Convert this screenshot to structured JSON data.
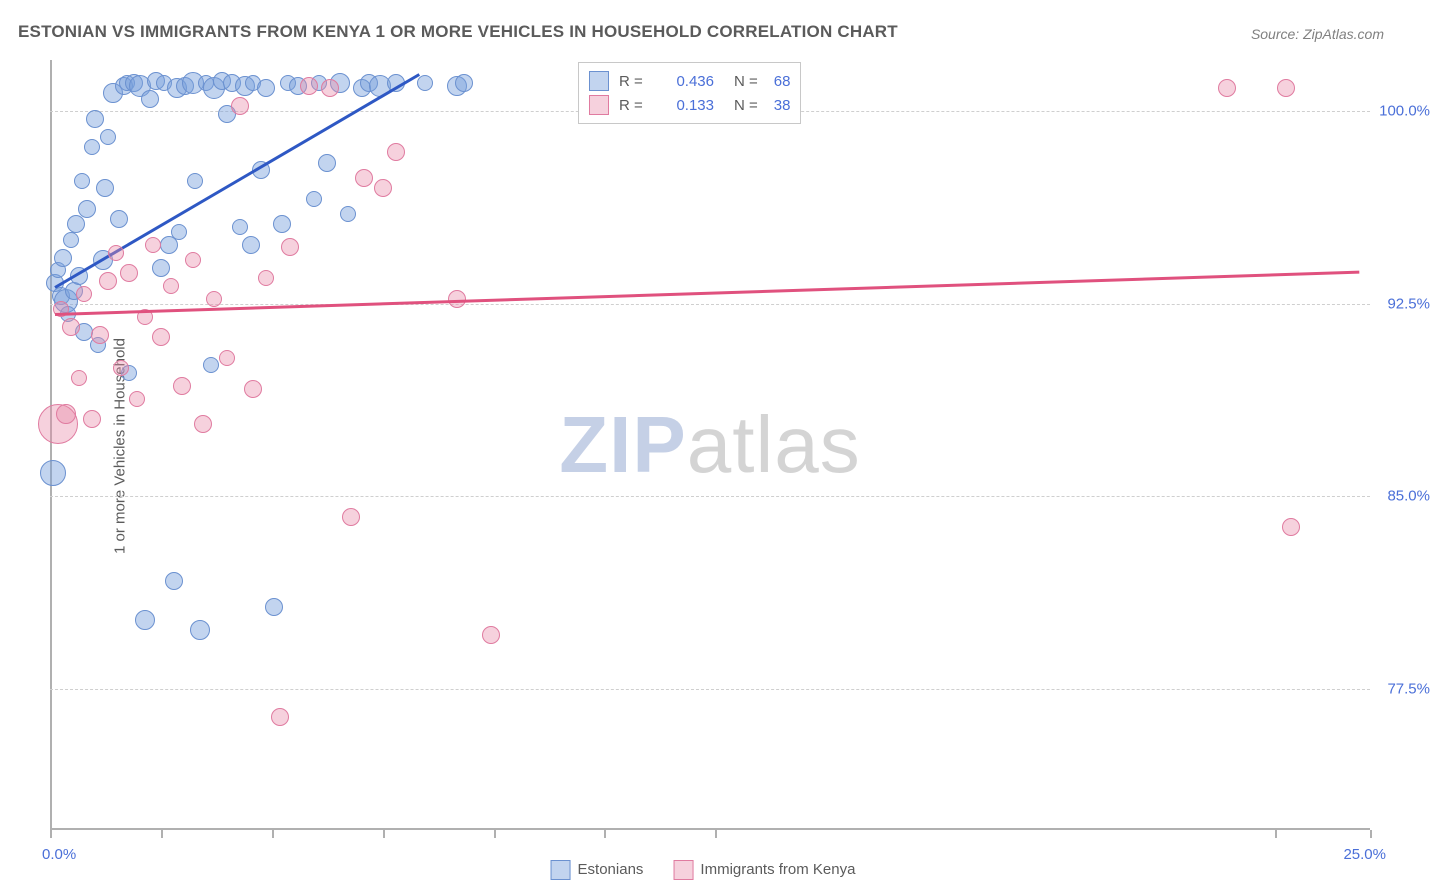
{
  "title": "ESTONIAN VS IMMIGRANTS FROM KENYA 1 OR MORE VEHICLES IN HOUSEHOLD CORRELATION CHART",
  "source": "Source: ZipAtlas.com",
  "ylabel": "1 or more Vehicles in Household",
  "watermark": {
    "bold": "ZIP",
    "rest": "atlas"
  },
  "chart": {
    "type": "scatter",
    "xlim": [
      0,
      25
    ],
    "ylim": [
      72,
      102
    ],
    "x_tick_labels": {
      "min": "0.0%",
      "max": "25.0%"
    },
    "x_ticks_at": [
      0,
      2.1,
      4.2,
      6.3,
      8.4,
      10.5,
      12.6,
      23.2,
      25.0
    ],
    "y_ticks": [
      77.5,
      85.0,
      92.5,
      100.0
    ],
    "y_tick_labels": [
      "77.5%",
      "85.0%",
      "92.5%",
      "100.0%"
    ],
    "grid_color": "#d4d4d4",
    "background_color": "#ffffff",
    "axis_color": "#b0b0b0",
    "tick_label_color": "#4a6fd8",
    "title_color": "#5b5b5b",
    "series": [
      {
        "id": "a",
        "label": "Estonians",
        "color_fill": "rgba(120,160,220,0.45)",
        "color_stroke": "#6b91d0",
        "R": "0.436",
        "N": "68",
        "trend": {
          "x0": 0.1,
          "y0": 93.2,
          "x1": 7.0,
          "y1": 101.5,
          "color": "#2e58c4",
          "width": 3
        },
        "points": [
          {
            "x": 0.1,
            "y": 93.3,
            "r": 9
          },
          {
            "x": 0.15,
            "y": 93.8,
            "r": 8
          },
          {
            "x": 0.2,
            "y": 92.8,
            "r": 9
          },
          {
            "x": 0.25,
            "y": 94.3,
            "r": 9
          },
          {
            "x": 0.3,
            "y": 92.6,
            "r": 12
          },
          {
            "x": 0.35,
            "y": 92.1,
            "r": 8
          },
          {
            "x": 0.4,
            "y": 95.0,
            "r": 8
          },
          {
            "x": 0.45,
            "y": 93.0,
            "r": 9
          },
          {
            "x": 0.5,
            "y": 95.6,
            "r": 9
          },
          {
            "x": 0.55,
            "y": 93.6,
            "r": 9
          },
          {
            "x": 0.6,
            "y": 97.3,
            "r": 8
          },
          {
            "x": 0.65,
            "y": 91.4,
            "r": 9
          },
          {
            "x": 0.7,
            "y": 96.2,
            "r": 9
          },
          {
            "x": 0.8,
            "y": 98.6,
            "r": 8
          },
          {
            "x": 0.85,
            "y": 99.7,
            "r": 9
          },
          {
            "x": 0.9,
            "y": 90.9,
            "r": 8
          },
          {
            "x": 1.0,
            "y": 94.2,
            "r": 10
          },
          {
            "x": 1.05,
            "y": 97.0,
            "r": 9
          },
          {
            "x": 1.1,
            "y": 99.0,
            "r": 8
          },
          {
            "x": 1.2,
            "y": 100.7,
            "r": 10
          },
          {
            "x": 1.3,
            "y": 95.8,
            "r": 9
          },
          {
            "x": 1.4,
            "y": 101.0,
            "r": 9
          },
          {
            "x": 1.45,
            "y": 101.1,
            "r": 8
          },
          {
            "x": 1.5,
            "y": 89.8,
            "r": 8
          },
          {
            "x": 1.6,
            "y": 101.1,
            "r": 9
          },
          {
            "x": 1.7,
            "y": 101.0,
            "r": 11
          },
          {
            "x": 1.8,
            "y": 80.2,
            "r": 10
          },
          {
            "x": 1.9,
            "y": 100.5,
            "r": 9
          },
          {
            "x": 2.0,
            "y": 101.2,
            "r": 9
          },
          {
            "x": 2.1,
            "y": 93.9,
            "r": 9
          },
          {
            "x": 2.15,
            "y": 101.1,
            "r": 8
          },
          {
            "x": 2.25,
            "y": 94.8,
            "r": 9
          },
          {
            "x": 2.35,
            "y": 81.7,
            "r": 9
          },
          {
            "x": 2.4,
            "y": 100.9,
            "r": 10
          },
          {
            "x": 2.45,
            "y": 95.3,
            "r": 8
          },
          {
            "x": 2.55,
            "y": 101.0,
            "r": 9
          },
          {
            "x": 2.7,
            "y": 101.1,
            "r": 11
          },
          {
            "x": 2.75,
            "y": 97.3,
            "r": 8
          },
          {
            "x": 2.85,
            "y": 79.8,
            "r": 10
          },
          {
            "x": 2.95,
            "y": 101.1,
            "r": 8
          },
          {
            "x": 3.05,
            "y": 90.1,
            "r": 8
          },
          {
            "x": 3.1,
            "y": 100.9,
            "r": 11
          },
          {
            "x": 3.25,
            "y": 101.2,
            "r": 9
          },
          {
            "x": 3.35,
            "y": 99.9,
            "r": 9
          },
          {
            "x": 3.45,
            "y": 101.1,
            "r": 9
          },
          {
            "x": 3.6,
            "y": 95.5,
            "r": 8
          },
          {
            "x": 3.7,
            "y": 101.0,
            "r": 10
          },
          {
            "x": 3.8,
            "y": 94.8,
            "r": 9
          },
          {
            "x": 3.85,
            "y": 101.1,
            "r": 8
          },
          {
            "x": 4.0,
            "y": 97.7,
            "r": 9
          },
          {
            "x": 4.1,
            "y": 100.9,
            "r": 9
          },
          {
            "x": 4.25,
            "y": 80.7,
            "r": 9
          },
          {
            "x": 4.4,
            "y": 95.6,
            "r": 9
          },
          {
            "x": 4.5,
            "y": 101.1,
            "r": 8
          },
          {
            "x": 4.7,
            "y": 101.0,
            "r": 9
          },
          {
            "x": 5.0,
            "y": 96.6,
            "r": 8
          },
          {
            "x": 5.1,
            "y": 101.1,
            "r": 8
          },
          {
            "x": 5.25,
            "y": 98.0,
            "r": 9
          },
          {
            "x": 5.5,
            "y": 101.1,
            "r": 10
          },
          {
            "x": 5.65,
            "y": 96.0,
            "r": 8
          },
          {
            "x": 5.9,
            "y": 100.9,
            "r": 9
          },
          {
            "x": 6.05,
            "y": 101.1,
            "r": 9
          },
          {
            "x": 6.25,
            "y": 101.0,
            "r": 11
          },
          {
            "x": 6.55,
            "y": 101.1,
            "r": 9
          },
          {
            "x": 7.1,
            "y": 101.1,
            "r": 8
          },
          {
            "x": 7.7,
            "y": 101.0,
            "r": 10
          },
          {
            "x": 7.85,
            "y": 101.1,
            "r": 9
          },
          {
            "x": 0.05,
            "y": 85.9,
            "r": 13
          }
        ]
      },
      {
        "id": "b",
        "label": "Immigrants from Kenya",
        "color_fill": "rgba(232,140,170,0.40)",
        "color_stroke": "#e07ba0",
        "R": "0.133",
        "N": "38",
        "trend": {
          "x0": 0.1,
          "y0": 92.15,
          "x1": 24.8,
          "y1": 93.8,
          "color": "#e0517e",
          "width": 3
        },
        "points": [
          {
            "x": 0.15,
            "y": 87.8,
            "r": 20
          },
          {
            "x": 0.2,
            "y": 92.3,
            "r": 8
          },
          {
            "x": 0.3,
            "y": 88.2,
            "r": 10
          },
          {
            "x": 0.4,
            "y": 91.6,
            "r": 9
          },
          {
            "x": 0.55,
            "y": 89.6,
            "r": 8
          },
          {
            "x": 0.65,
            "y": 92.9,
            "r": 8
          },
          {
            "x": 0.8,
            "y": 88.0,
            "r": 9
          },
          {
            "x": 0.95,
            "y": 91.3,
            "r": 9
          },
          {
            "x": 1.1,
            "y": 93.4,
            "r": 9
          },
          {
            "x": 1.25,
            "y": 94.5,
            "r": 8
          },
          {
            "x": 1.35,
            "y": 90.0,
            "r": 8
          },
          {
            "x": 1.5,
            "y": 93.7,
            "r": 9
          },
          {
            "x": 1.65,
            "y": 88.8,
            "r": 8
          },
          {
            "x": 1.8,
            "y": 92.0,
            "r": 8
          },
          {
            "x": 1.95,
            "y": 94.8,
            "r": 8
          },
          {
            "x": 2.1,
            "y": 91.2,
            "r": 9
          },
          {
            "x": 2.3,
            "y": 93.2,
            "r": 8
          },
          {
            "x": 2.5,
            "y": 89.3,
            "r": 9
          },
          {
            "x": 2.7,
            "y": 94.2,
            "r": 8
          },
          {
            "x": 2.9,
            "y": 87.8,
            "r": 9
          },
          {
            "x": 3.1,
            "y": 92.7,
            "r": 8
          },
          {
            "x": 3.35,
            "y": 90.4,
            "r": 8
          },
          {
            "x": 3.6,
            "y": 100.2,
            "r": 9
          },
          {
            "x": 3.85,
            "y": 89.2,
            "r": 9
          },
          {
            "x": 4.1,
            "y": 93.5,
            "r": 8
          },
          {
            "x": 4.35,
            "y": 76.4,
            "r": 9
          },
          {
            "x": 4.55,
            "y": 94.7,
            "r": 9
          },
          {
            "x": 4.9,
            "y": 101.0,
            "r": 9
          },
          {
            "x": 5.3,
            "y": 100.9,
            "r": 9
          },
          {
            "x": 5.7,
            "y": 84.2,
            "r": 9
          },
          {
            "x": 5.95,
            "y": 97.4,
            "r": 9
          },
          {
            "x": 6.3,
            "y": 97.0,
            "r": 9
          },
          {
            "x": 6.55,
            "y": 98.4,
            "r": 9
          },
          {
            "x": 7.7,
            "y": 92.7,
            "r": 9
          },
          {
            "x": 8.35,
            "y": 79.6,
            "r": 9
          },
          {
            "x": 22.3,
            "y": 100.9,
            "r": 9
          },
          {
            "x": 23.4,
            "y": 100.9,
            "r": 9
          },
          {
            "x": 23.5,
            "y": 83.8,
            "r": 9
          }
        ]
      }
    ]
  },
  "legend_top": {
    "rows": [
      {
        "sw_fill": "rgba(120,160,220,0.45)",
        "sw_stroke": "#6b91d0",
        "r_label": "R =",
        "r_val": "0.436",
        "n_label": "N =",
        "n_val": "68"
      },
      {
        "sw_fill": "rgba(232,140,170,0.40)",
        "sw_stroke": "#e07ba0",
        "r_label": "R =",
        "r_val": "0.133",
        "n_label": "N =",
        "n_val": "38"
      }
    ]
  },
  "legend_bottom": [
    {
      "sw_fill": "rgba(120,160,220,0.45)",
      "sw_stroke": "#6b91d0",
      "label": "Estonians"
    },
    {
      "sw_fill": "rgba(232,140,170,0.40)",
      "sw_stroke": "#e07ba0",
      "label": "Immigrants from Kenya"
    }
  ]
}
